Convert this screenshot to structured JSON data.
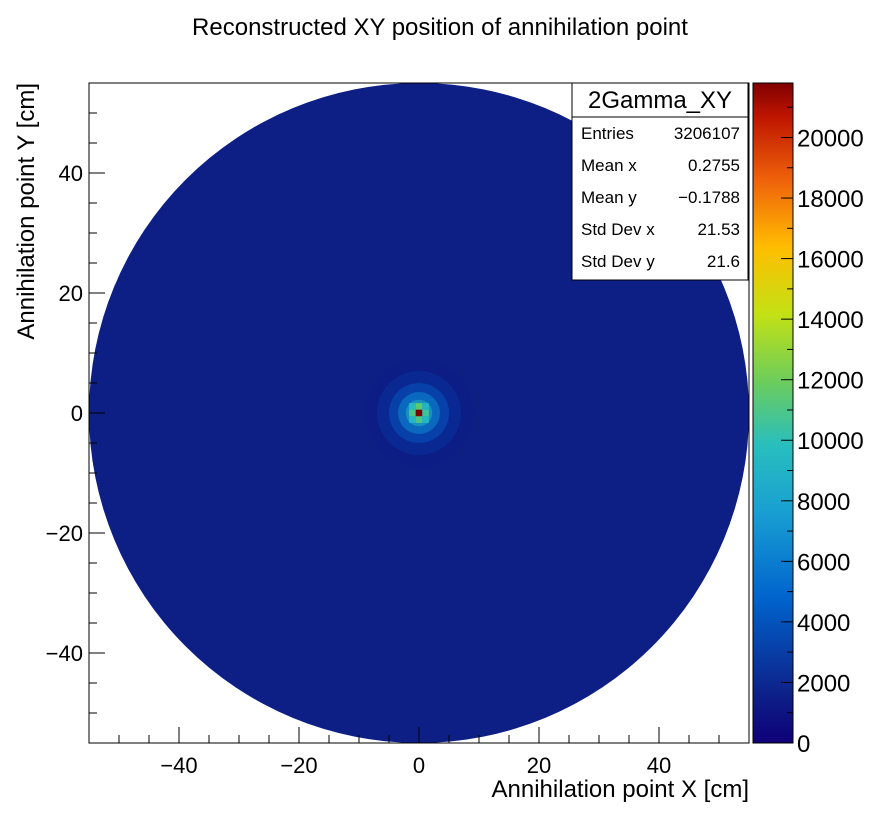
{
  "chart_data": {
    "type": "heatmap",
    "title": "Reconstructed XY position of annihilation point",
    "xlabel": "Annihilation point X [cm]",
    "ylabel": "Annihilation point Y [cm]",
    "xlim": [
      -55,
      55
    ],
    "ylim": [
      -55,
      55
    ],
    "zlim": [
      0,
      21800
    ],
    "x_ticks": [
      -40,
      -20,
      0,
      20,
      40
    ],
    "y_ticks": [
      -40,
      -20,
      0,
      20,
      40
    ],
    "x_tick_labels": [
      "−40",
      "−20",
      "0",
      "20",
      "40"
    ],
    "y_tick_labels": [
      "−40",
      "−20",
      "0",
      "20",
      "40"
    ],
    "z_ticks": [
      0,
      2000,
      4000,
      6000,
      8000,
      10000,
      12000,
      14000,
      16000,
      18000,
      20000
    ],
    "z_tick_labels": [
      "0",
      "2000",
      "4000",
      "6000",
      "8000",
      "10000",
      "12000",
      "14000",
      "16000",
      "18000",
      "20000"
    ],
    "detector_radius": 55,
    "background_level": 600,
    "peak": {
      "x": 0,
      "y": 0,
      "value": 21800
    },
    "grid": false,
    "legend": "none",
    "colorbar": "right",
    "palette": "rainbow",
    "colors": {
      "background_fill": "#0d1f85",
      "empty_bin": "#ffffff",
      "palette_low": "#0f0079",
      "palette_high": "#7f0000"
    },
    "stats_box": {
      "name": "2Gamma_XY",
      "placement": "top-right",
      "rows": [
        {
          "label": "Entries",
          "value": "3206107"
        },
        {
          "label": "Mean x",
          "value": "0.2755"
        },
        {
          "label": "Mean y",
          "value": "−0.1788"
        },
        {
          "label": "Std Dev x",
          "value": "21.53"
        },
        {
          "label": "Std Dev y",
          "value": "21.6"
        }
      ]
    }
  }
}
